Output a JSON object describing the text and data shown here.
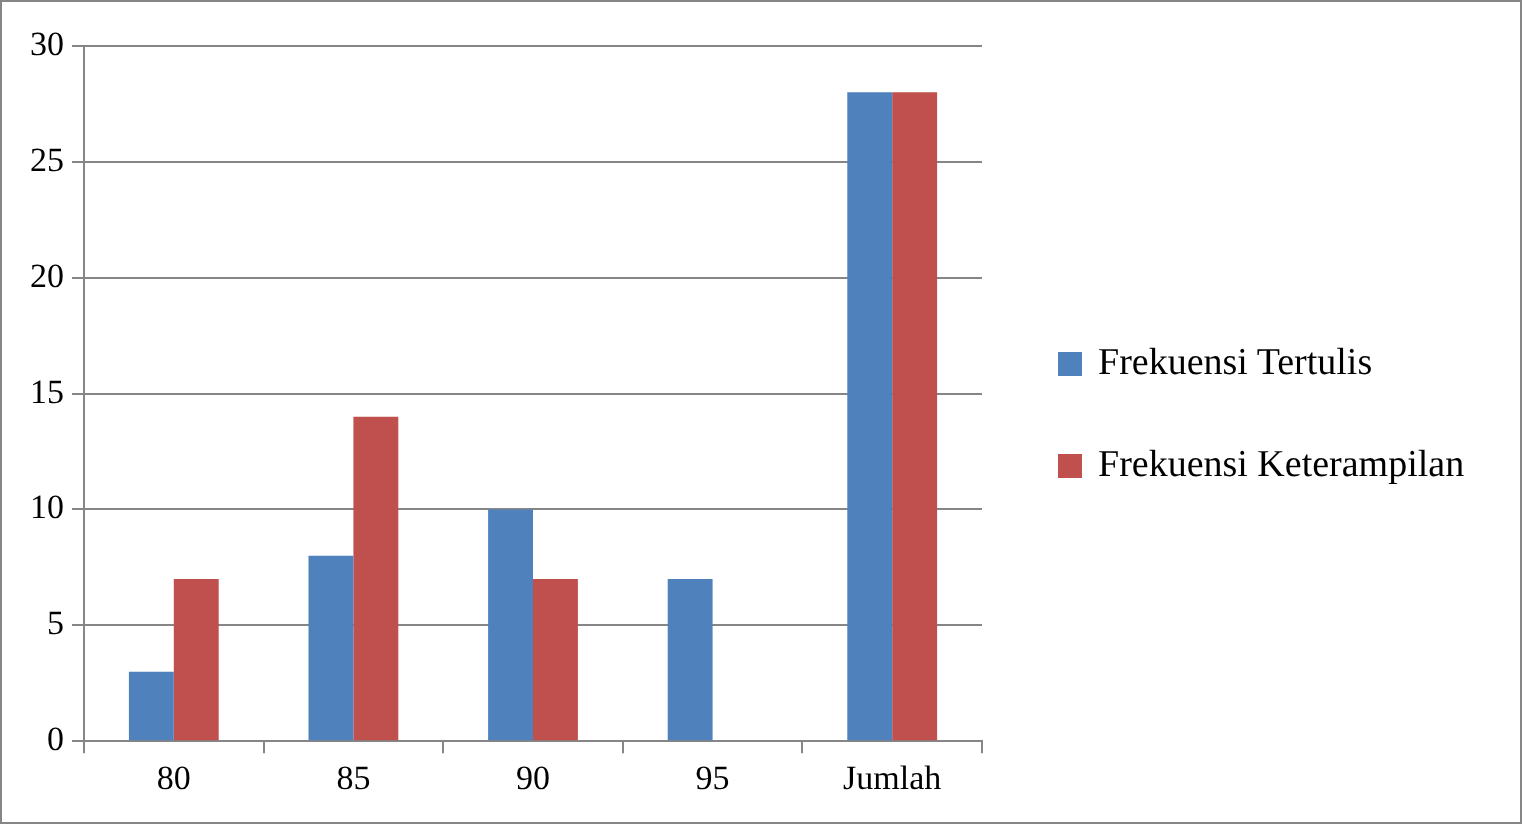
{
  "chart_data": {
    "type": "bar",
    "categories": [
      "80",
      "85",
      "90",
      "95",
      "Jumlah"
    ],
    "series": [
      {
        "name": "Frekuensi Tertulis",
        "color": "#4f81bd",
        "values": [
          3,
          8,
          10,
          7,
          28
        ]
      },
      {
        "name": "Frekuensi Keterampilan",
        "color": "#c0504d",
        "values": [
          7,
          14,
          7,
          0,
          28
        ]
      }
    ],
    "ylim": [
      0,
      30
    ],
    "yticks": [
      0,
      5,
      10,
      15,
      20,
      25,
      30
    ],
    "grid": "y",
    "legend": "right"
  }
}
